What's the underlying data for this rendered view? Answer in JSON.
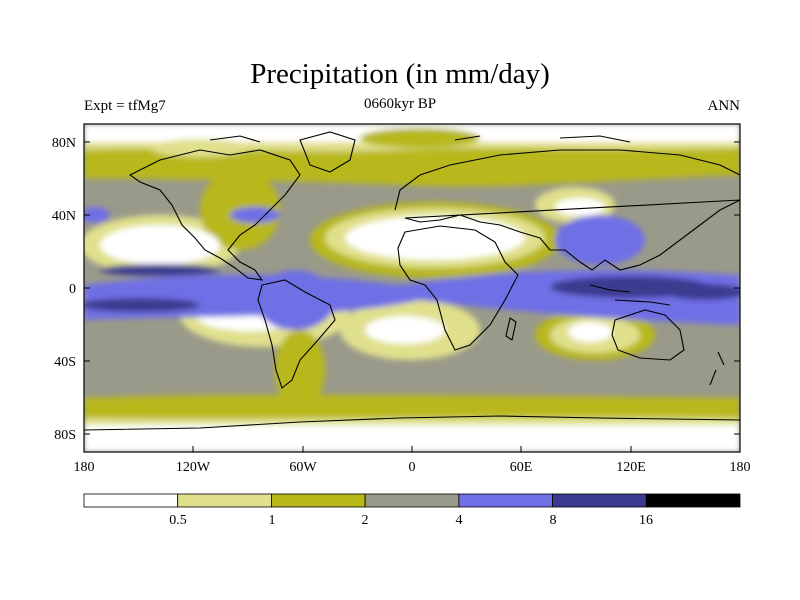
{
  "title": "Precipitation (in mm/day)",
  "left_label": "Expt = tfMg7",
  "center_label": "0660kyr BP",
  "right_label": "ANN",
  "lat_ticks": [
    "80N",
    "40N",
    "0",
    "40S",
    "80S"
  ],
  "lon_ticks": [
    "180",
    "120W",
    "60W",
    "0",
    "60E",
    "120E",
    "180"
  ],
  "colorbar": {
    "colors": [
      "#ffffff",
      "#e0e08c",
      "#b8b81a",
      "#9a9a8a",
      "#7070e6",
      "#3a3a90",
      "#000000"
    ],
    "labels": [
      "0.5",
      "1",
      "2",
      "4",
      "8",
      "16"
    ]
  },
  "colors": {
    "white": "#ffffff",
    "light_yellow": "#e0e08c",
    "olive": "#b8b81a",
    "gray": "#9a9a8a",
    "blue": "#7070e6",
    "dark_blue": "#3a3a90",
    "black": "#000000"
  }
}
